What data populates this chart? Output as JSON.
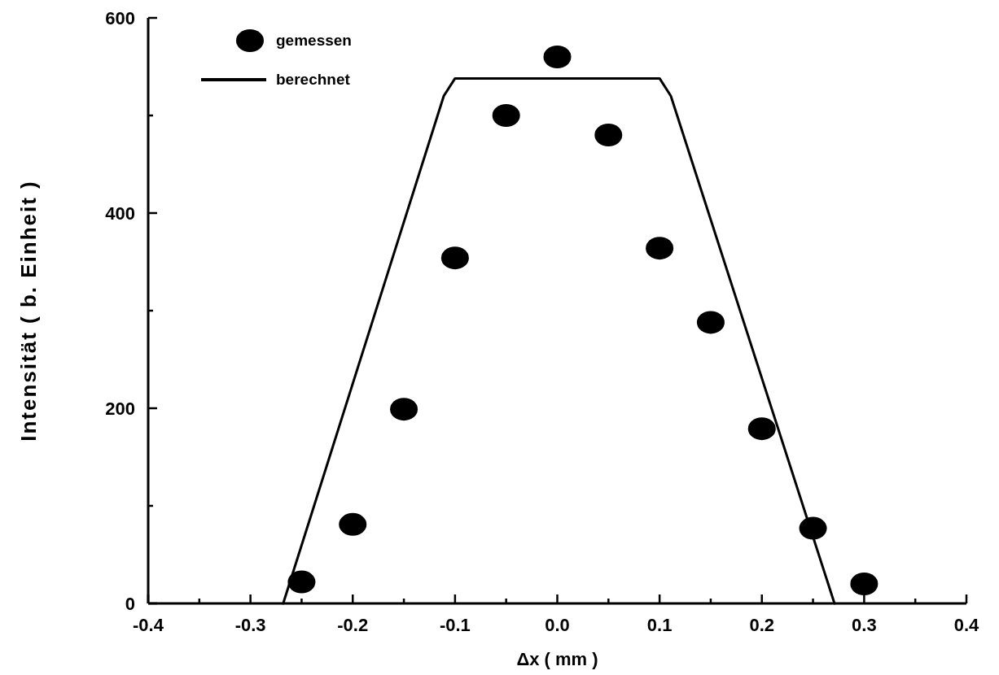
{
  "chart_data": {
    "type": "scatter",
    "xlabel": "Δx ( mm )",
    "ylabel": "Intensität ( b. Einheit )",
    "xlim": [
      -0.4,
      0.4
    ],
    "ylim": [
      0,
      600
    ],
    "xticks": [
      -0.4,
      {
        "value": -0.35,
        "label": null
      },
      -0.3,
      {
        "value": -0.25,
        "label": null
      },
      -0.2,
      {
        "value": -0.15,
        "label": null
      },
      -0.1,
      {
        "value": -0.05,
        "label": null
      },
      {
        "value": 0,
        "label": "0.0"
      },
      {
        "value": 0.05,
        "label": null
      },
      0.1,
      {
        "value": 0.15,
        "label": null
      },
      0.2,
      {
        "value": 0.25,
        "label": null
      },
      0.3,
      {
        "value": 0.35,
        "label": null
      },
      0.4
    ],
    "yticks": [
      0,
      {
        "value": 100,
        "label": null
      },
      200,
      {
        "value": 300,
        "label": null
      },
      400,
      {
        "value": 500,
        "label": null
      },
      600
    ],
    "legend": "top left",
    "grid": false,
    "series": [
      {
        "name": "gemessen",
        "marker": "circle",
        "color": "#000000",
        "x": [
          -0.25,
          -0.2,
          -0.15,
          -0.1,
          -0.05,
          0,
          0.05,
          0.1,
          0.15,
          0.2,
          0.25,
          0.3
        ],
        "values": [
          22,
          81,
          199,
          354,
          500,
          560,
          480,
          364,
          288,
          179,
          77,
          20
        ]
      },
      {
        "name": "berechnet",
        "type": "line",
        "marker": "none",
        "line_style": "solid",
        "color": "#000000",
        "x": [
          -0.268,
          -0.111,
          -0.1,
          0.1,
          0.111,
          0.271
        ],
        "values": [
          0,
          520,
          538,
          538,
          520,
          0
        ]
      }
    ]
  }
}
